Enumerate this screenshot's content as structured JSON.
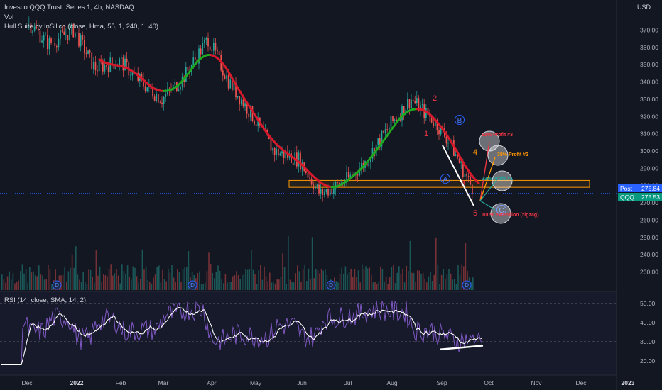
{
  "header": {
    "title": "Invesco QQQ Trust, Series 1, 4h, NASDAQ",
    "volume_label": "Vol",
    "indicator": "Hull Suite by InSilico (close, Hma, 55, 1, 240, 1, 40)",
    "rsi_label": "RSI (14, close, SMA, 14, 2)",
    "currency": "USD"
  },
  "price_tags": {
    "post_label": "Post",
    "post_value": "275.84",
    "symbol_label": "QQQ",
    "symbol_value": "275.53",
    "post_color": "#2962ff",
    "symbol_color": "#089981"
  },
  "colors": {
    "background": "#131722",
    "candle_up": "#26a69a",
    "candle_down": "#ef5350",
    "hull_up": "#1fa820",
    "hull_down": "#d61a2c",
    "rsi_line": "#7e57c2",
    "rsi_ma": "#ffffff",
    "support_box": "#ff9800"
  },
  "chart_data": {
    "type": "line",
    "x": [
      "2021-12-01",
      "2021-12-15",
      "2022-01-01",
      "2022-01-15",
      "2022-02-01",
      "2022-02-15",
      "2022-03-01",
      "2022-03-15",
      "2022-04-01",
      "2022-04-15",
      "2022-05-01",
      "2022-05-15",
      "2022-06-01",
      "2022-06-15",
      "2022-07-01",
      "2022-07-15",
      "2022-08-01",
      "2022-08-15",
      "2022-09-01",
      "2022-09-10",
      "2022-09-20",
      "2022-09-26"
    ],
    "series": [
      {
        "values": [
          375,
          362,
          370,
          348,
          352,
          340,
          330,
          342,
          365,
          340,
          320,
          300,
          295,
          275,
          282,
          293,
          315,
          330,
          316,
          305,
          287,
          277
        ]
      }
    ],
    "ylim": [
      222,
      378
    ],
    "y_ticks": [
      370,
      360,
      350,
      340,
      330,
      320,
      310,
      300,
      290,
      280,
      270,
      260,
      250,
      240,
      230
    ],
    "y_tick_labels": [
      "370.00",
      "360.00",
      "350.00",
      "340.00",
      "330.00",
      "320.00",
      "310.00",
      "300.00",
      "290.00",
      "280.00",
      "270.00",
      "260.00",
      "250.00",
      "240.00",
      "230.00"
    ],
    "x_ticks": [
      "Dec",
      "2022",
      "Feb",
      "Mar",
      "Apr",
      "May",
      "Jun",
      "Jul",
      "Aug",
      "Sep",
      "Oct",
      "Nov",
      "Dec",
      "2023"
    ],
    "rsi": {
      "ylim": [
        10,
        60
      ],
      "y_ticks": [
        50,
        40,
        30,
        20
      ],
      "y_tick_labels": [
        "50.00",
        "40.00",
        "30.00",
        "20.00"
      ],
      "bands": [
        50,
        30
      ]
    },
    "support_zone": {
      "low": 279,
      "high": 283
    },
    "annotations": {
      "wave_labels": [
        "1",
        "2",
        "3",
        "4",
        "5",
        "A",
        "B",
        "C"
      ],
      "targets": [
        "61% Profit #3",
        "38% Profit #2",
        "23% Profit #1",
        "100% extension (zigzag)"
      ],
      "dividend_marker": "D"
    }
  }
}
